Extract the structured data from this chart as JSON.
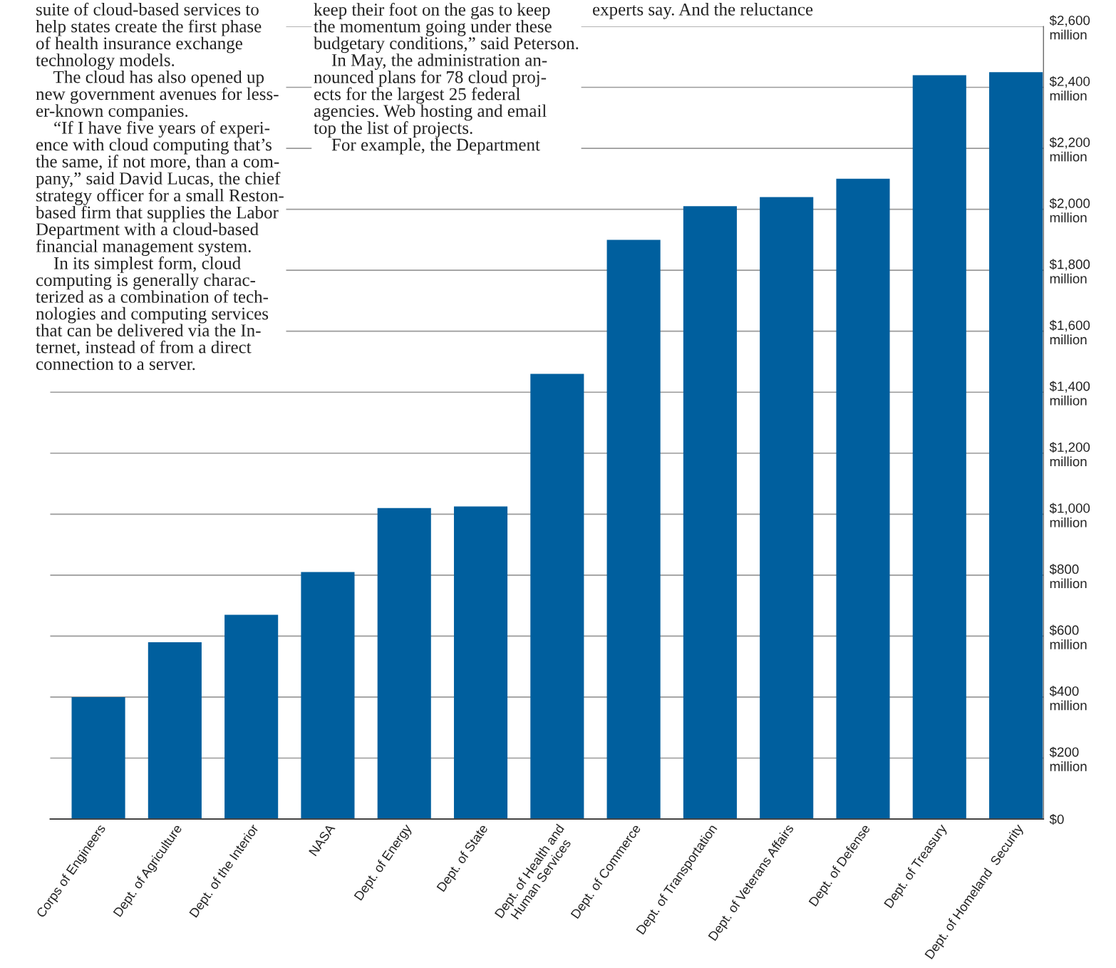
{
  "chart_data": {
    "type": "bar",
    "categories": [
      "Corps of Engineers",
      "Dept. of Agriculture",
      "Dept. of the Interior",
      "NASA",
      "Dept. of Energy",
      "Dept. of State",
      "Dept. of Health and\nHuman Services",
      "Dept. of Commerce",
      "Dept. of Transportation",
      "Dept. of Veterans Affairs",
      "Dept. of Defense",
      "Dept. of Treasury",
      "Dept. of Homeland  Security"
    ],
    "values": [
      400000000,
      580000000,
      670000000,
      810000000,
      1020000000,
      1025000000,
      1460000000,
      1900000000,
      2010000000,
      2040000000,
      2100000000,
      2440000000,
      2450000000
    ],
    "color": "#005f9e",
    "ylim": [
      0,
      2600000000
    ],
    "yticks": [
      {
        "value": 0,
        "label": "$0"
      },
      {
        "value": 200000000,
        "label": "$200\nmillion"
      },
      {
        "value": 400000000,
        "label": "$400\nmillion"
      },
      {
        "value": 600000000,
        "label": "$600\nmillion"
      },
      {
        "value": 800000000,
        "label": "$800\nmillion"
      },
      {
        "value": 1000000000,
        "label": "$1,000\nmillion"
      },
      {
        "value": 1200000000,
        "label": "$1,200\nmillion"
      },
      {
        "value": 1400000000,
        "label": "$1,400\nmillion"
      },
      {
        "value": 1600000000,
        "label": "$1,600\nmillion"
      },
      {
        "value": 1800000000,
        "label": "$1,800\nmillion"
      },
      {
        "value": 2000000000,
        "label": "$2,000\nmillion"
      },
      {
        "value": 2200000000,
        "label": "$2,200\nmillion"
      },
      {
        "value": 2400000000,
        "label": "$2,400\nmillion"
      },
      {
        "value": 2600000000,
        "label": "$2,600\nmillion"
      }
    ],
    "grid": "y",
    "annotations": [
      "suite of cloud-based services to\nhelp states create the first phase\nof health insurance exchange\ntechnology models.\n    The cloud has also opened up\nnew government avenues for less-\ner-known companies.\n    “If I have five years of experi-\nence with cloud computing that’s\nthe same, if not more, than a com-\npany,” said David Lucas, the chief\nstrategy officer for a small Reston-\nbased firm that supplies the Labor\nDepartment with a cloud-based\nfinancial management system.\n    In its simplest form, cloud\ncomputing is generally charac-\nterized as a combination of tech-\nnologies and computing services\nthat can be delivered via the In-\nternet, instead of from a direct\nconnection to a server.",
      "keep their foot on the gas to keep\nthe momentum going under these\nbudgetary conditions,” said Peterson.\n    In May, the administration an-\nnounced plans for 78 cloud proj-\nects for the largest 25 federal\nagencies. Web hosting and email\ntop the list of projects.\n    For example, the Department",
      "experts say. And the reluctance"
    ]
  }
}
